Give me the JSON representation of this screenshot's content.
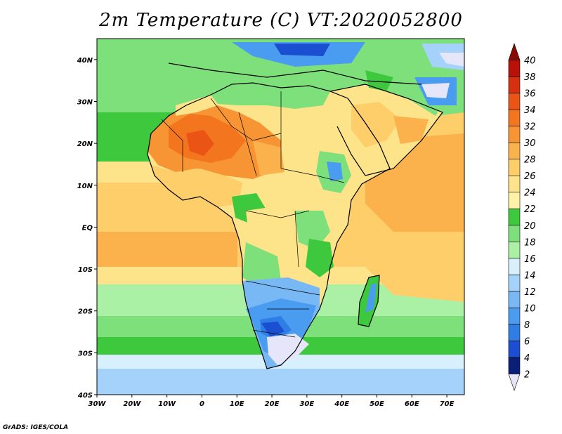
{
  "title": "2m Temperature (C) VT:2020052800",
  "credit": "GrADS: IGES/COLA",
  "map": {
    "lon_range": [
      -30,
      75
    ],
    "lat_range": [
      -40,
      45
    ],
    "lon_ticks": [
      {
        "value": -30,
        "label": "30W"
      },
      {
        "value": -20,
        "label": "20W"
      },
      {
        "value": -10,
        "label": "10W"
      },
      {
        "value": 0,
        "label": "0"
      },
      {
        "value": 10,
        "label": "10E"
      },
      {
        "value": 20,
        "label": "20E"
      },
      {
        "value": 30,
        "label": "30E"
      },
      {
        "value": 40,
        "label": "40E"
      },
      {
        "value": 50,
        "label": "50E"
      },
      {
        "value": 60,
        "label": "60E"
      },
      {
        "value": 70,
        "label": "70E"
      }
    ],
    "lat_ticks": [
      {
        "value": 40,
        "label": "40N"
      },
      {
        "value": 30,
        "label": "30N"
      },
      {
        "value": 20,
        "label": "20N"
      },
      {
        "value": 10,
        "label": "10N"
      },
      {
        "value": 0,
        "label": "EQ"
      },
      {
        "value": -10,
        "label": "10S"
      },
      {
        "value": -20,
        "label": "20S"
      },
      {
        "value": -30,
        "label": "30S"
      },
      {
        "value": -40,
        "label": "40S"
      }
    ]
  },
  "colorbar": {
    "levels": [
      2,
      4,
      6,
      8,
      10,
      12,
      14,
      16,
      18,
      20,
      22,
      24,
      26,
      28,
      30,
      32,
      34,
      36,
      38,
      40
    ],
    "labels": [
      "2",
      "4",
      "6",
      "8",
      "10",
      "12",
      "14",
      "16",
      "18",
      "20",
      "22",
      "24",
      "26",
      "28",
      "30",
      "32",
      "34",
      "36",
      "38",
      "40"
    ],
    "colors": [
      "#e6e6fa",
      "#0b1f78",
      "#1a4fd1",
      "#2f7ee6",
      "#4a9cf0",
      "#78b8f5",
      "#a5d2fb",
      "#d8f0fb",
      "#aaf0a5",
      "#7ee07a",
      "#3ec83e",
      "#fdf2a6",
      "#fde38a",
      "#fdce6a",
      "#fbb24d",
      "#f79433",
      "#f3761e",
      "#ea5414",
      "#d7300e",
      "#b91008",
      "#8a0b06"
    ]
  }
}
